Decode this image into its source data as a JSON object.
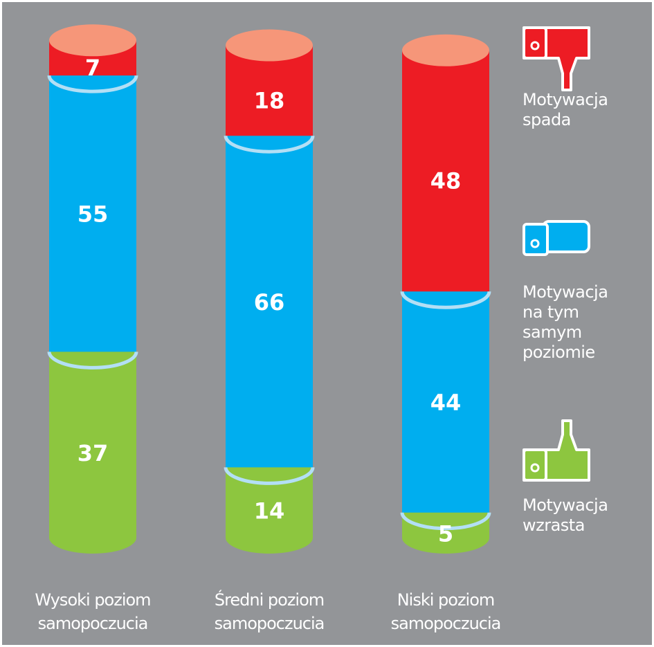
{
  "chart_data": {
    "type": "bar",
    "stacked": true,
    "categories": [
      [
        "Wysoki poziom",
        "samopoczucia"
      ],
      [
        "Średni poziom",
        "samopoczucia"
      ],
      [
        "Niski poziom",
        "samopoczucia"
      ]
    ],
    "series": [
      {
        "name": "Motywacja wzrasta",
        "label_lines": [
          "Motywacja",
          "wzrasta"
        ],
        "color": "#8dc63f",
        "values": [
          37,
          14,
          5
        ]
      },
      {
        "name": "Motywacja na tym samym poziomie",
        "label_lines": [
          "Motywacja",
          "na tym",
          "samym",
          "poziomie"
        ],
        "color": "#00aeef",
        "values": [
          55,
          66,
          44
        ]
      },
      {
        "name": "Motywacja spada",
        "label_lines": [
          "Motywacja",
          "spada"
        ],
        "color": "#ed1c24",
        "values": [
          7,
          18,
          48
        ]
      }
    ],
    "legend_order": [
      {
        "series": 2,
        "icon": "thumbs-down-icon"
      },
      {
        "series": 1,
        "icon": "thumbs-sideways-icon"
      },
      {
        "series": 0,
        "icon": "thumbs-up-icon"
      }
    ],
    "legend_position": "right",
    "background_color": "#939598",
    "cap_color": "#f69679",
    "seam_color": "#b3dff5",
    "grid": false,
    "title": "",
    "xlabel": "",
    "ylabel": ""
  }
}
